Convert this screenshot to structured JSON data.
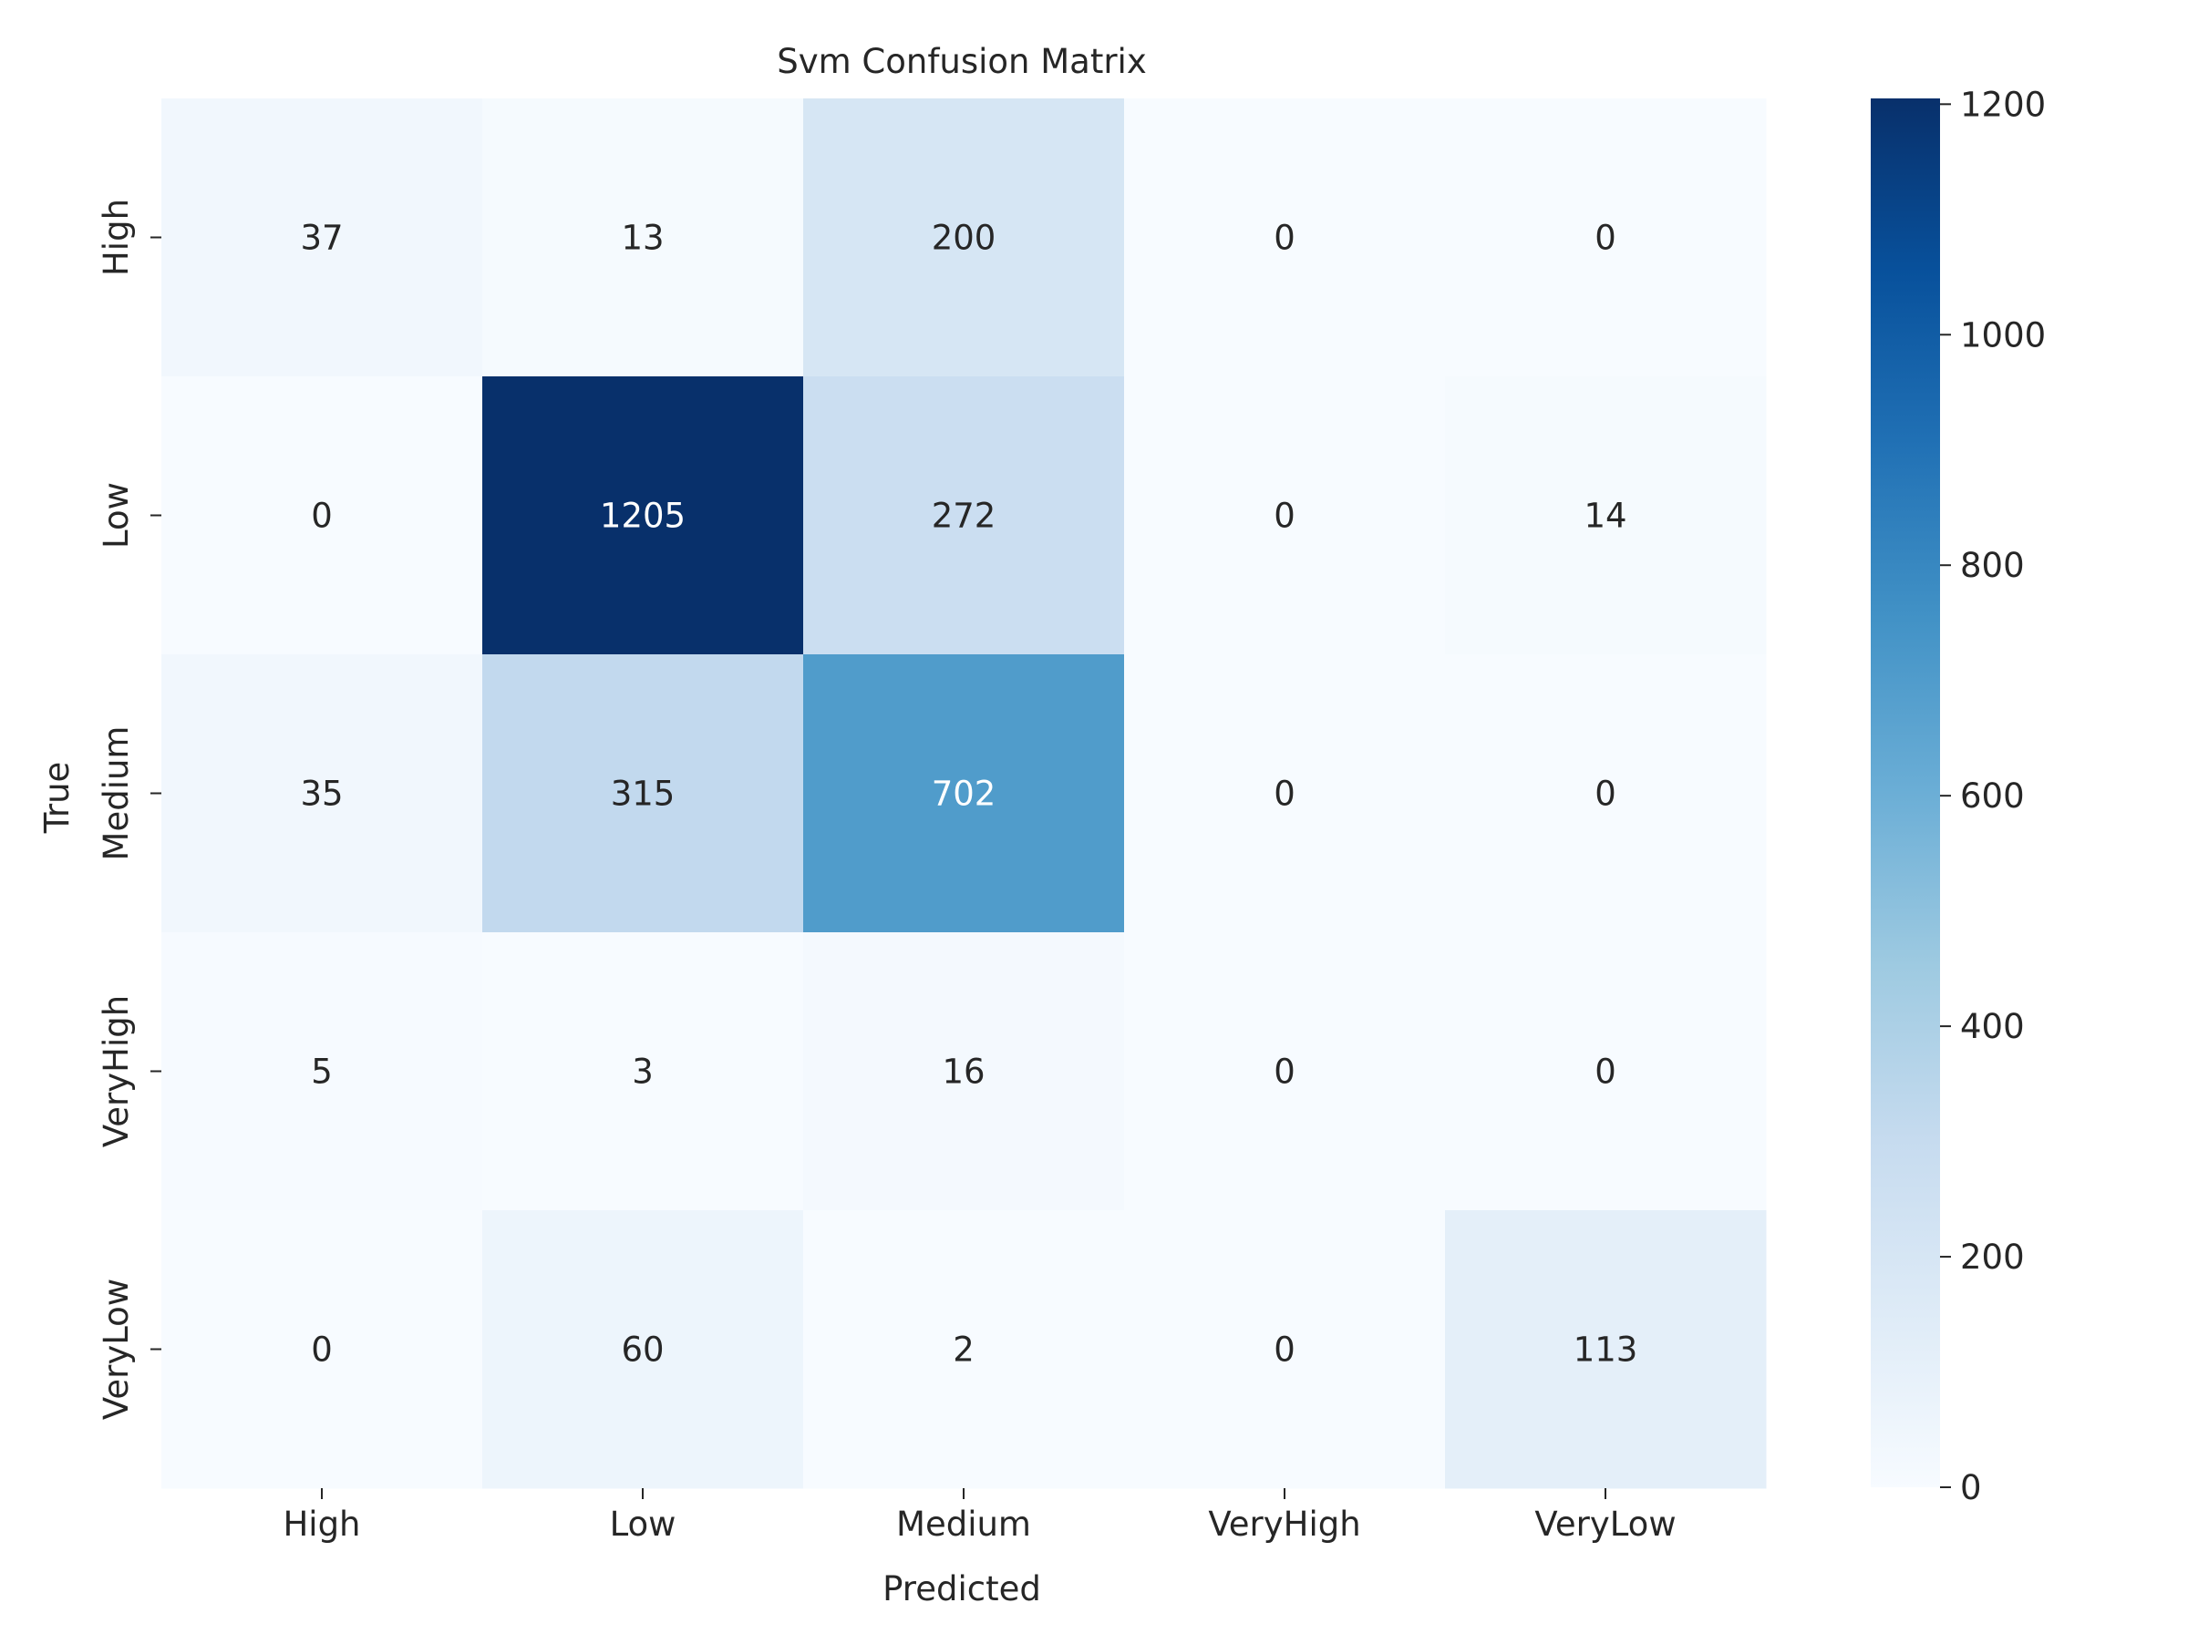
{
  "chart_data": {
    "type": "heatmap",
    "title": "Svm Confusion Matrix",
    "xlabel": "Predicted",
    "ylabel": "True",
    "x_categories": [
      "High",
      "Low",
      "Medium",
      "VeryHigh",
      "VeryLow"
    ],
    "y_categories": [
      "High",
      "Low",
      "Medium",
      "VeryHigh",
      "VeryLow"
    ],
    "values": [
      [
        37,
        13,
        200,
        0,
        0
      ],
      [
        0,
        1205,
        272,
        0,
        14
      ],
      [
        35,
        315,
        702,
        0,
        0
      ],
      [
        5,
        3,
        16,
        0,
        0
      ],
      [
        0,
        60,
        2,
        0,
        113
      ]
    ],
    "colormap": "Blues",
    "color_range": [
      0,
      1205
    ],
    "colorbar_ticks": [
      0,
      200,
      400,
      600,
      800,
      1000,
      1200
    ],
    "colorbar_tick_labels": [
      "0",
      "200",
      "400",
      "600",
      "800",
      "1000",
      "1200"
    ],
    "grid": false,
    "colorbar_position": "right"
  }
}
